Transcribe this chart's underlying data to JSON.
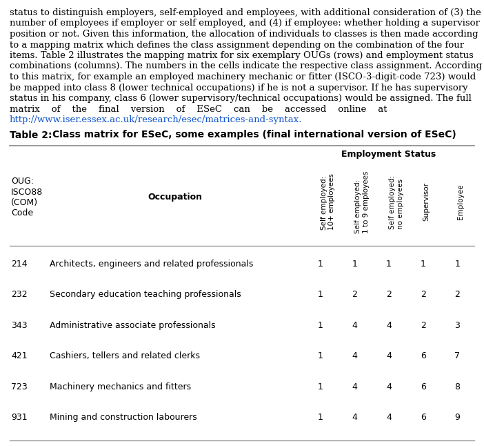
{
  "paragraph_lines": [
    "status to distinguish employers, self-employed and employees, with additional consideration of (3) the",
    "number of employees if employer or self employed, and (4) if employee: whether holding a supervisor",
    "position or not. Given this information, the allocation of individuals to classes is then made according",
    "to a mapping matrix which defines the class assignment depending on the combination of the four",
    "items. Table 2 illustrates the mapping matrix for six exemplary OUGs (rows) and employment status",
    "combinations (columns). The numbers in the cells indicate the respective class assignment. According",
    "to this matrix, for example an employed machinery mechanic or fitter (ISCO-3-digit-code 723) would",
    "be mapped into class 8 (lower technical occupations) if he is not a supervisor. If he has supervisory",
    "status in his company, class 6 (lower supervisory/technical occupations) would be assigned. The full",
    "matrix    of    the    final    version    of    ESeC    can    be    accessed    online    at"
  ],
  "url_line": "http://www.iser.essex.ac.uk/research/esec/matrices-and-syntax.",
  "table_label": "Table 2:",
  "table_title": "Class matrix for ESeC, some examples (final international version of ESeC)",
  "employment_status_header": "Employment Status",
  "col_headers_right": [
    "Self employed:\n10+ employees",
    "Self employed:\n1 to 9 employees",
    "Self employed:\nno employees",
    "Supervisor",
    "Employee"
  ],
  "rows": [
    {
      "code": "214",
      "occupation": "Architects, engineers and related professionals",
      "values": [
        1,
        1,
        1,
        1,
        1
      ]
    },
    {
      "code": "232",
      "occupation": "Secondary education teaching professionals",
      "values": [
        1,
        2,
        2,
        2,
        2
      ]
    },
    {
      "code": "343",
      "occupation": "Administrative associate professionals",
      "values": [
        1,
        4,
        4,
        2,
        3
      ]
    },
    {
      "code": "421",
      "occupation": "Cashiers, tellers and related clerks",
      "values": [
        1,
        4,
        4,
        6,
        7
      ]
    },
    {
      "code": "723",
      "occupation": "Machinery mechanics and fitters",
      "values": [
        1,
        4,
        4,
        6,
        8
      ]
    },
    {
      "code": "931",
      "occupation": "Mining and construction labourers",
      "values": [
        1,
        4,
        4,
        6,
        9
      ]
    }
  ],
  "bg_color": "#ffffff",
  "text_color": "#000000",
  "url_color": "#1155CC",
  "line_color": "#888888",
  "para_fontsize": 9.5,
  "title_fontsize": 10,
  "body_fontsize": 9,
  "header_fontsize": 9
}
